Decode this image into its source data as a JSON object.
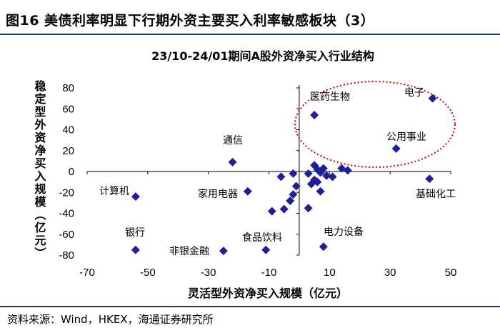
{
  "figure_title": "图16 美债利率明显下行期外资主要买入利率敏感板块（3）",
  "source_note": "资料来源：Wind，HKEX，海通证券研究所",
  "chart_data": {
    "type": "scatter",
    "title": "23/10-24/01期间A股外资净买入行业结构",
    "xlabel": "灵活型外资净买入规模（亿元）",
    "ylabel": "稳定型外资净买入规模（亿元）",
    "xlim": [
      -70,
      50
    ],
    "ylim": [
      -80,
      80
    ],
    "xticks": [
      -70,
      -50,
      -30,
      -10,
      10,
      30,
      50
    ],
    "yticks": [
      80,
      60,
      40,
      20,
      0,
      -20,
      -40,
      -60,
      -80
    ],
    "marker_color": "#1f1f99",
    "highlight_ellipse_color": "#c00000",
    "points": [
      {
        "label": "电子",
        "x": 44,
        "y": 70
      },
      {
        "label": "医药生物",
        "x": 5,
        "y": 54
      },
      {
        "label": "公用事业",
        "x": 32,
        "y": 22
      },
      {
        "label": "通信",
        "x": -22,
        "y": 9
      },
      {
        "label": "基础化工",
        "x": 43,
        "y": -7
      },
      {
        "label": "计算机",
        "x": -54,
        "y": -24
      },
      {
        "label": "家用电器",
        "x": -17,
        "y": -19
      },
      {
        "label": "银行",
        "x": -54,
        "y": -75
      },
      {
        "label": "非银金融",
        "x": -25,
        "y": -76
      },
      {
        "label": "食品饮料",
        "x": -11,
        "y": -75
      },
      {
        "label": "电力设备",
        "x": 8,
        "y": -72
      },
      {
        "label": "",
        "x": -2,
        "y": -2
      },
      {
        "label": "",
        "x": -6,
        "y": -5
      },
      {
        "label": "",
        "x": 3,
        "y": -2
      },
      {
        "label": "",
        "x": 5,
        "y": 6
      },
      {
        "label": "",
        "x": 6,
        "y": 2
      },
      {
        "label": "",
        "x": 7,
        "y": -1
      },
      {
        "label": "",
        "x": 8,
        "y": 3
      },
      {
        "label": "",
        "x": 9,
        "y": -4
      },
      {
        "label": "",
        "x": 11,
        "y": -5
      },
      {
        "label": "",
        "x": 14,
        "y": 3
      },
      {
        "label": "",
        "x": 16,
        "y": 1
      },
      {
        "label": "",
        "x": 4,
        "y": -12
      },
      {
        "label": "",
        "x": 5,
        "y": -8
      },
      {
        "label": "",
        "x": 6,
        "y": -10
      },
      {
        "label": "",
        "x": -1,
        "y": -14
      },
      {
        "label": "",
        "x": 7,
        "y": -19
      },
      {
        "label": "",
        "x": -2,
        "y": -22
      },
      {
        "label": "",
        "x": -3,
        "y": -28
      },
      {
        "label": "",
        "x": 3,
        "y": -35
      },
      {
        "label": "",
        "x": -5,
        "y": -36
      },
      {
        "label": "",
        "x": -9,
        "y": -38
      }
    ]
  }
}
